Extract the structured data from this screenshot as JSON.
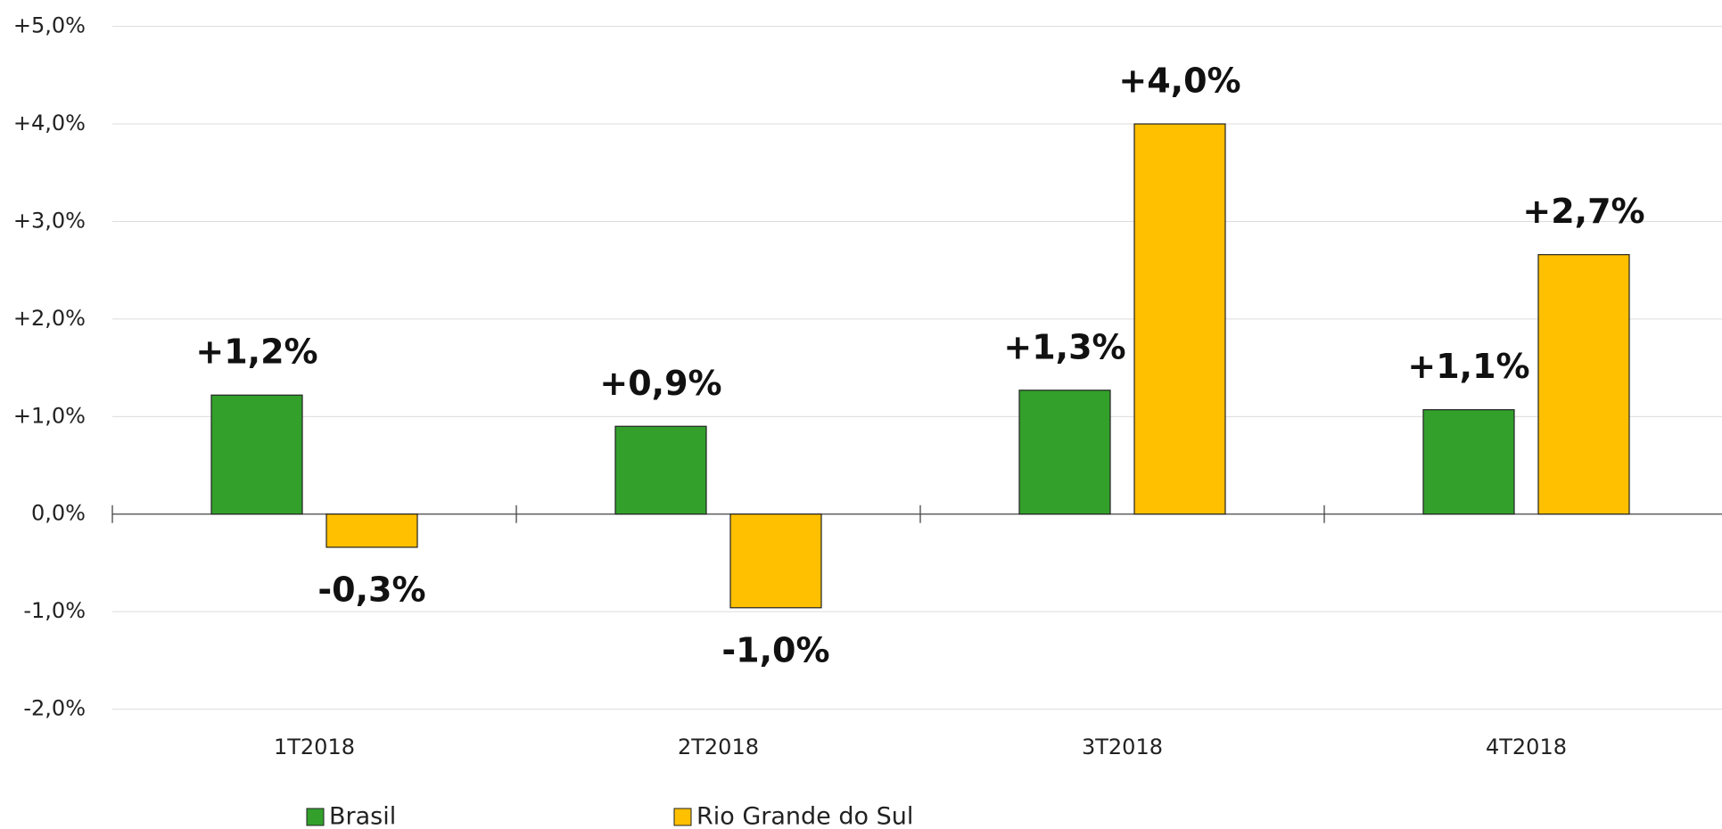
{
  "chart_data": {
    "type": "bar",
    "categories": [
      "1T2018",
      "2T2018",
      "3T2018",
      "4T2018"
    ],
    "series": [
      {
        "name": "Brasil",
        "color": "#33a02c",
        "values": [
          1.22,
          0.9,
          1.27,
          1.07
        ],
        "value_labels": [
          "+1,2%",
          "+0,9%",
          "+1,3%",
          "+1,1%"
        ]
      },
      {
        "name": "Rio Grande do Sul",
        "color": "#ffc000",
        "values": [
          -0.34,
          -0.96,
          4.0,
          2.66
        ],
        "value_labels": [
          "-0,3%",
          "-1,0%",
          "+4,0%",
          "+2,7%"
        ]
      }
    ],
    "ylim": [
      -2,
      5
    ],
    "yticks": [
      {
        "value": -2,
        "label": "-2,0%"
      },
      {
        "value": -1,
        "label": "-1,0%"
      },
      {
        "value": 0,
        "label": "0,0%"
      },
      {
        "value": 1,
        "label": "+1,0%"
      },
      {
        "value": 2,
        "label": "+2,0%"
      },
      {
        "value": 3,
        "label": "+3,0%"
      },
      {
        "value": 4,
        "label": "+4,0%"
      },
      {
        "value": 5,
        "label": "+5,0%"
      }
    ],
    "grid": true
  }
}
